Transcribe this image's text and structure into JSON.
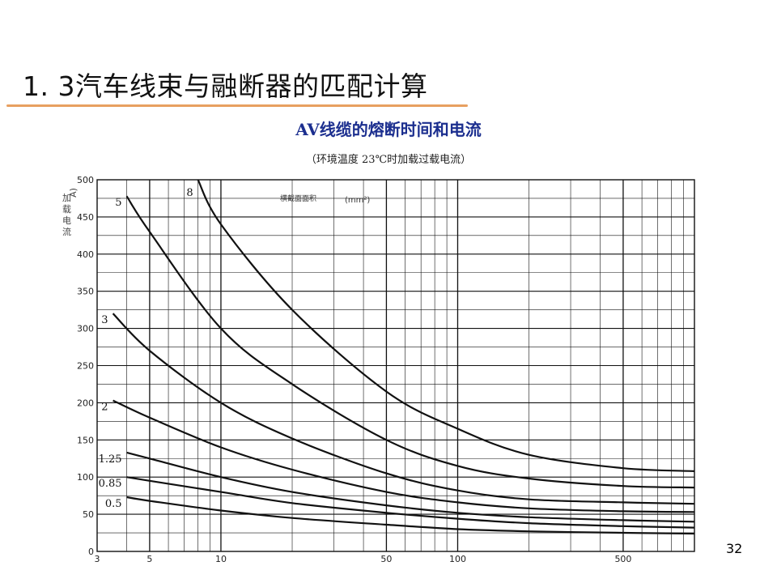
{
  "slide": {
    "title": "1. 3汽车线束与融断器的匹配计算",
    "page_number": "32",
    "colors": {
      "title_rule": "#e8a060",
      "chart_title": "#1c2f8f"
    }
  },
  "chart_data": {
    "type": "line",
    "title": "AV线缆的熔断时间和电流",
    "subtitle": "（环境温度 23℃时加载过载电流）",
    "ylabel_unit": "A)",
    "ylabel": "加载电流",
    "legend_title": "横截面面积",
    "legend_unit": "(mm²)",
    "x_scale": "log",
    "xlim": [
      3,
      1000
    ],
    "ylim": [
      0,
      500
    ],
    "x_ticks": [
      3,
      5,
      10,
      50,
      100,
      500
    ],
    "y_ticks": [
      0,
      50,
      100,
      150,
      200,
      250,
      300,
      350,
      400,
      450,
      500
    ],
    "grid": true,
    "series": [
      {
        "name": "8",
        "x": [
          8,
          10,
          20,
          50,
          100,
          200,
          500,
          1000
        ],
        "values": [
          500,
          440,
          325,
          215,
          165,
          130,
          112,
          108
        ]
      },
      {
        "name": "5",
        "x": [
          4,
          5,
          10,
          20,
          50,
          100,
          200,
          500,
          1000
        ],
        "values": [
          478,
          430,
          300,
          225,
          150,
          115,
          98,
          88,
          86
        ]
      },
      {
        "name": "3",
        "x": [
          3.5,
          5,
          10,
          20,
          50,
          100,
          200,
          500,
          1000
        ],
        "values": [
          320,
          270,
          200,
          152,
          105,
          82,
          70,
          66,
          64
        ]
      },
      {
        "name": "2",
        "x": [
          3.5,
          5,
          10,
          20,
          50,
          100,
          200,
          500,
          1000
        ],
        "values": [
          203,
          180,
          140,
          110,
          80,
          66,
          58,
          54,
          53
        ]
      },
      {
        "name": "1.25",
        "x": [
          4,
          5,
          10,
          20,
          50,
          100,
          200,
          500,
          1000
        ],
        "values": [
          133,
          125,
          100,
          80,
          62,
          52,
          46,
          42,
          40
        ]
      },
      {
        "name": "0.85",
        "x": [
          4,
          5,
          10,
          20,
          50,
          100,
          200,
          500,
          1000
        ],
        "values": [
          100,
          95,
          80,
          65,
          52,
          44,
          38,
          34,
          32
        ]
      },
      {
        "name": "0.5",
        "x": [
          4,
          5,
          10,
          20,
          50,
          100,
          200,
          500,
          1000
        ],
        "values": [
          73,
          68,
          55,
          45,
          36,
          30,
          27,
          25,
          24
        ]
      }
    ]
  }
}
